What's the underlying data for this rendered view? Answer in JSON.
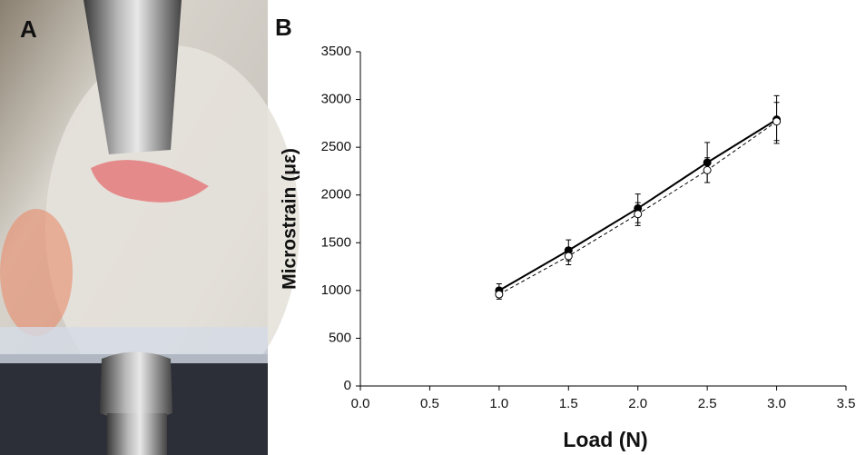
{
  "panels": [
    "A",
    "B"
  ],
  "chart_data": {
    "type": "scatter",
    "x_label": "Load (N)",
    "y_label": "Microstrain (με)",
    "xlim": [
      0,
      3.5
    ],
    "xticks": [
      {
        "value": 0,
        "label": "0.0"
      },
      {
        "value": 0.5,
        "label": "0.5"
      },
      {
        "value": 1,
        "label": "1.0"
      },
      {
        "value": 1.5,
        "label": "1.5"
      },
      {
        "value": 2,
        "label": "2.0"
      },
      {
        "value": 2.5,
        "label": "2.5"
      },
      {
        "value": 3,
        "label": "3.0"
      },
      {
        "value": 3.5,
        "label": "3.5"
      }
    ],
    "ylim": [
      0,
      3500
    ],
    "yticks": [
      0,
      500,
      1000,
      1500,
      2000,
      2500,
      3000,
      3500
    ],
    "x": [
      1.0,
      1.5,
      2.0,
      2.5,
      3.0
    ],
    "series": [
      {
        "color": "#000000",
        "marker": "filled",
        "line_style": "solid",
        "values": [
          1000,
          1420,
          1860,
          2340,
          2790
        ],
        "errors": [
          70,
          110,
          150,
          210,
          250
        ]
      },
      {
        "color": "#000000",
        "marker": "open",
        "line_style": "dashed",
        "values": [
          960,
          1360,
          1800,
          2260,
          2770
        ],
        "errors": [
          50,
          90,
          120,
          130,
          200
        ]
      }
    ]
  }
}
